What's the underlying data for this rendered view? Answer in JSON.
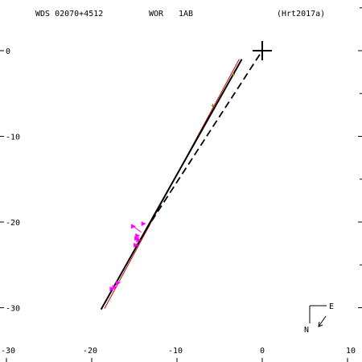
{
  "header": {
    "wds_id": "WDS 02070+4512",
    "discoverer": "WOR",
    "components": "1AB",
    "reference": "(Hrt2017a)"
  },
  "compass": {
    "east_label": "E",
    "north_label": "N"
  },
  "chart_data": {
    "type": "scatter",
    "title": "",
    "xlabel": "",
    "ylabel": "",
    "xlim": [
      -30,
      10
    ],
    "ylim": [
      -34,
      5
    ],
    "x_ticks": [
      -30,
      -20,
      -10,
      0,
      10
    ],
    "y_ticks": [
      0,
      -10,
      -20,
      -30
    ],
    "x_tick_labels": [
      "-30",
      "-20",
      "-10",
      "0",
      "10"
    ],
    "y_tick_labels": [
      "0",
      "-10",
      "-20",
      "-30"
    ],
    "grid": false,
    "primary_marker": [
      0,
      0
    ],
    "orbit_line": {
      "from": [
        -18.9,
        -30.2
      ],
      "to": [
        -2.4,
        -1.0
      ],
      "color": "#000000"
    },
    "alt_line": {
      "from": [
        -18.5,
        -30.1
      ],
      "to": [
        -2.7,
        -1.0
      ],
      "color": "#cc0000"
    },
    "projection_line": {
      "from": [
        -13.7,
        -21.0
      ],
      "to": [
        0,
        0
      ],
      "color": "#000000",
      "dash": true
    },
    "series": [
      {
        "marker": "triangle",
        "color": "#ff00ff",
        "points": [
          [
            -17.6,
            -27.8
          ],
          [
            -17.3,
            -27.6
          ],
          [
            -16.9,
            -27.1
          ],
          [
            -14.7,
            -21.9
          ],
          [
            -14.6,
            -21.6
          ],
          [
            -14.5,
            -22.1
          ],
          [
            -14.8,
            -22.7
          ],
          [
            -15.1,
            -20.5
          ],
          [
            -13.9,
            -20.2
          ]
        ],
        "residuals": [
          {
            "from": [
              -15.1,
              -20.5
            ],
            "to": [
              -14.2,
              -21.2
            ]
          },
          {
            "from": [
              -14.7,
              -21.9
            ],
            "to": [
              -14.4,
              -21.8
            ]
          },
          {
            "from": [
              -14.8,
              -22.7
            ],
            "to": [
              -14.6,
              -22.4
            ]
          }
        ]
      },
      {
        "marker": "cross",
        "color": "#808000",
        "points": [
          [
            -5.8,
            -6.4
          ],
          [
            -3.4,
            -2.8
          ]
        ]
      }
    ]
  }
}
